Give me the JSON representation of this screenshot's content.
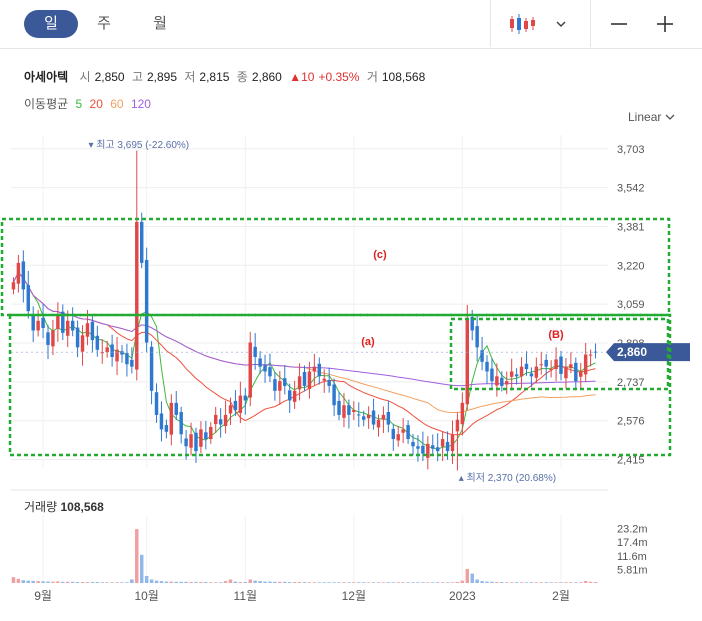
{
  "tabs": [
    {
      "label": "일",
      "active": true
    },
    {
      "label": "주",
      "active": false
    },
    {
      "label": "월",
      "active": false
    }
  ],
  "toolbar": {
    "chart_type_icon": "candlestick-icon",
    "dropdown_icon": "chevron-down-icon",
    "zoom_out_icon": "minus-icon",
    "zoom_in_icon": "plus-icon"
  },
  "stock": {
    "name": "아세아텍",
    "open_label": "시",
    "open": "2,850",
    "high_label": "고",
    "high": "2,895",
    "low_label": "저",
    "low": "2,815",
    "close_label": "종",
    "close": "2,860",
    "change": "▲10",
    "change_pct": "+0.35%",
    "volume_label": "거",
    "volume": "108,568"
  },
  "moving_average": {
    "label": "이동평균",
    "periods": [
      {
        "label": "5",
        "color": "#3db83d"
      },
      {
        "label": "20",
        "color": "#f0503c"
      },
      {
        "label": "60",
        "color": "#f2a060"
      },
      {
        "label": "120",
        "color": "#a060e0"
      }
    ]
  },
  "scale_mode": "Linear",
  "colors": {
    "up": "#e04848",
    "down": "#2f78d0",
    "accent": "#3b5998",
    "annotation": "#e02020",
    "box": "#22aa33"
  },
  "chart_data": {
    "type": "candlestick",
    "price_axis": {
      "ticks": [
        3703,
        3542,
        3381,
        3220,
        3059,
        2898,
        2737,
        2576,
        2415
      ],
      "tick_labels": [
        "3,703",
        "3,542",
        "3,381",
        "3,220",
        "3,059",
        "2,898",
        "2,737",
        "2,576",
        "2,415"
      ],
      "range": [
        2380,
        3760
      ]
    },
    "volume_axis": {
      "tick_labels": [
        "23.2m",
        "17.4m",
        "11.6m",
        "5.81m"
      ],
      "ticks": [
        23.2,
        17.4,
        11.6,
        5.81
      ],
      "max": 29.0
    },
    "x_labels": [
      {
        "label": "9월",
        "index": 6
      },
      {
        "label": "10월",
        "index": 27
      },
      {
        "label": "11월",
        "index": 47
      },
      {
        "label": "12월",
        "index": 69
      },
      {
        "label": "2023",
        "index": 91
      },
      {
        "label": "2월",
        "index": 111
      }
    ],
    "current_price": 2860,
    "current_price_label": "2,860",
    "high_annotation": {
      "text": "최고 3,695 (-22.60%)",
      "value": 3695,
      "index": 25
    },
    "low_annotation": {
      "text": "최저 2,370 (20.68%)",
      "value": 2370,
      "index": 90
    },
    "volume_title": "거래량",
    "volume_value": "108,568",
    "region_labels": [
      "(c)",
      "(a)",
      "(B)"
    ],
    "close": [
      3150,
      3230,
      3120,
      3030,
      2950,
      2990,
      2960,
      2890,
      2950,
      3010,
      2940,
      2990,
      2950,
      2880,
      2930,
      2980,
      2910,
      2870,
      2860,
      2880,
      2840,
      2870,
      2850,
      2810,
      2800,
      3400,
      3230,
      2900,
      2700,
      2600,
      2540,
      2530,
      2650,
      2600,
      2520,
      2470,
      2520,
      2450,
      2540,
      2500,
      2550,
      2600,
      2560,
      2600,
      2640,
      2620,
      2680,
      2660,
      2900,
      2840,
      2800,
      2780,
      2760,
      2700,
      2740,
      2720,
      2660,
      2700,
      2760,
      2720,
      2780,
      2800,
      2760,
      2750,
      2720,
      2640,
      2600,
      2640,
      2600,
      2620,
      2600,
      2580,
      2600,
      2560,
      2580,
      2600,
      2560,
      2500,
      2520,
      2540,
      2500,
      2470,
      2460,
      2440,
      2480,
      2460,
      2450,
      2500,
      2450,
      2520,
      2580,
      2650,
      3000,
      2950,
      2880,
      2820,
      2780,
      2740,
      2760,
      2720,
      2740,
      2780,
      2760,
      2800,
      2790,
      2760,
      2800,
      2810,
      2800,
      2790,
      2830,
      2770,
      2800,
      2810,
      2740,
      2780,
      2850,
      2850,
      2860
    ],
    "volume_millions": [
      2.5,
      1.8,
      1.2,
      1.0,
      0.9,
      0.8,
      0.7,
      0.6,
      0.6,
      0.7,
      0.5,
      0.5,
      0.5,
      0.4,
      0.4,
      0.4,
      0.4,
      0.4,
      0.3,
      0.3,
      0.3,
      0.3,
      0.3,
      0.3,
      1.5,
      23.0,
      12.0,
      3.0,
      1.5,
      1.0,
      0.8,
      0.6,
      0.6,
      0.5,
      0.5,
      0.5,
      0.4,
      0.4,
      0.4,
      0.4,
      0.3,
      0.3,
      0.3,
      0.8,
      1.5,
      0.6,
      0.4,
      0.4,
      1.5,
      1.0,
      0.8,
      0.6,
      0.6,
      0.5,
      0.5,
      0.5,
      0.4,
      0.4,
      0.4,
      0.4,
      0.3,
      0.3,
      0.3,
      0.3,
      0.3,
      0.3,
      0.3,
      0.3,
      0.3,
      0.3,
      0.3,
      0.3,
      0.3,
      0.3,
      0.3,
      0.3,
      0.3,
      0.3,
      0.3,
      0.3,
      0.3,
      0.3,
      0.3,
      0.3,
      0.3,
      0.3,
      0.3,
      0.3,
      0.3,
      0.3,
      0.4,
      1.0,
      6.0,
      4.0,
      1.5,
      0.8,
      0.6,
      0.5,
      0.4,
      0.4,
      0.3,
      0.3,
      0.3,
      0.3,
      0.3,
      0.3,
      0.3,
      0.3,
      0.3,
      0.3,
      0.3,
      0.3,
      0.3,
      0.3,
      0.3,
      0.3,
      0.8,
      0.5,
      0.4
    ]
  }
}
